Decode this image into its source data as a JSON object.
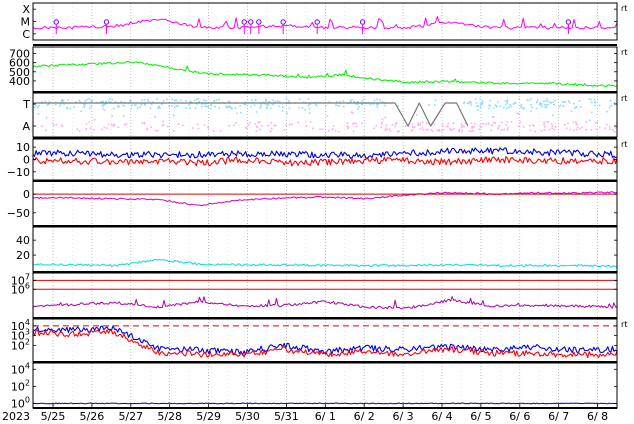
{
  "chart_data": {
    "type": "line",
    "year": "2023",
    "x_axis": {
      "ticks": [
        "5/25",
        "5/26",
        "5/27",
        "5/28",
        "5/29",
        "5/30",
        "5/31",
        "6/ 1",
        "6/ 2",
        "6/ 3",
        "6/ 4",
        "6/ 5",
        "6/ 6",
        "6/ 7",
        "6/ 8"
      ],
      "range": [
        "2023-05-24T15:00",
        "2023-06-08T15:00"
      ]
    },
    "panels": [
      {
        "id": "xray-class",
        "yticks": [
          "X",
          "M",
          "C"
        ],
        "corner_mark": "rt",
        "series": [
          {
            "color": "#ff00ff",
            "kind": "level-trace",
            "values": [
              0.3,
              0.3,
              0.35,
              0.55,
              0.3,
              0.3,
              0.35,
              0.3,
              0.3,
              0.3,
              0.45,
              0.3,
              0.3,
              0.3,
              0.3
            ]
          },
          {
            "color": "#6a00ff",
            "kind": "event-markers",
            "x": [
              "2023-05-25T02:00",
              "2023-05-26T09:00",
              "2023-05-29T22:00",
              "2023-05-30T02:00",
              "2023-05-30T07:00",
              "2023-05-30T22:00",
              "2023-05-31T19:00",
              "2023-06-01T23:00",
              "2023-06-07T06:00"
            ]
          }
        ]
      },
      {
        "id": "solar-wind-speed",
        "yticks": [
          "700",
          "600",
          "500",
          "400"
        ],
        "ylim": [
          300,
          750
        ],
        "corner_mark": "rt",
        "series": [
          {
            "color": "#00ee00",
            "x": [
              "5/24 15:00",
              "5/25 06:00",
              "5/26 03:00",
              "5/26 18:00",
              "5/27 12:00",
              "5/28 06:00",
              "5/29 00:00",
              "5/30 00:00",
              "5/31 06:00",
              "6/1 00:00",
              "6/2 00:00",
              "6/3 00:00",
              "6/4 00:00",
              "6/5 00:00",
              "6/6 00:00",
              "6/7 00:00",
              "6/8 00:00",
              "6/8 15:00"
            ],
            "values": [
              560,
              575,
              590,
              610,
              545,
              480,
              470,
              460,
              435,
              470,
              415,
              385,
              395,
              380,
              370,
              375,
              350,
              345
            ]
          }
        ]
      },
      {
        "id": "imf-direction",
        "yticks": [
          "T",
          "A"
        ],
        "corner_mark": "rt",
        "series": [
          {
            "color": "#88ddff",
            "kind": "scatter-band",
            "level": "T"
          },
          {
            "color": "#ffaaee",
            "kind": "scatter-band",
            "level": "A"
          },
          {
            "color": "#777777",
            "kind": "flag-trace",
            "x": [
              "2023-06-02T19:00",
              "2023-06-03T03:00",
              "2023-06-03T10:00",
              "2023-06-03T17:00",
              "2023-06-04T02:00",
              "2023-06-04T09:00",
              "2023-06-04T16:00"
            ],
            "levels": [
              "T",
              "A",
              "T",
              "A",
              "T",
              "T",
              "A"
            ]
          }
        ]
      },
      {
        "id": "imf-components",
        "yticks": [
          "10",
          "0",
          "−10"
        ],
        "ylim": [
          -15,
          15
        ],
        "corner_mark": "rt",
        "series": [
          {
            "color": "#0000dd",
            "values": [
              5,
              5,
              4,
              4,
              4,
              5,
              4,
              4,
              3,
              5,
              7,
              7,
              6,
              5,
              4
            ]
          },
          {
            "color": "#ff0000",
            "values": [
              -1,
              -1,
              -2,
              -1,
              -3,
              0,
              -3,
              -2,
              -1,
              -1,
              -2,
              0,
              -1,
              -1,
              -1
            ]
          }
        ]
      },
      {
        "id": "geomagnetic-h",
        "yticks": [
          "0",
          "−50"
        ],
        "ylim": [
          -80,
          30
        ],
        "series": [
          {
            "color": "#cc00cc",
            "values": [
              -10,
              -10,
              -12,
              -15,
              -30,
              -15,
              -10,
              -8,
              -12,
              -2,
              5,
              0,
              4,
              3,
              5
            ]
          },
          {
            "color": "#dd0000",
            "kind": "reference",
            "values": [
              0
            ]
          }
        ]
      },
      {
        "id": "proton-flux",
        "yticks": [
          "40",
          "20"
        ],
        "ylim": [
          0,
          55
        ],
        "series": [
          {
            "color": "#00dddd",
            "values": [
              8,
              7,
              6,
              14,
              8,
              7,
              7,
              6,
              6,
              6,
              7,
              6,
              6,
              6,
              5
            ]
          }
        ]
      },
      {
        "id": "electron-flux",
        "yticks": [
          "10^7",
          "10^6"
        ],
        "ylim": [
          3.0,
          7.6
        ],
        "series": [
          {
            "color": "#aa00aa",
            "values": [
              4.0,
              4.3,
              4.5,
              4.0,
              4.6,
              4.1,
              4.2,
              4.6,
              4.0,
              3.9,
              4.8,
              4.1,
              4.2,
              4.1,
              4.0
            ]
          },
          {
            "color": "#dd0000",
            "kind": "reference",
            "values": [
              7
            ]
          },
          {
            "color": "#dd0000",
            "kind": "reference",
            "values": [
              6
            ]
          }
        ]
      },
      {
        "id": "high-energy-flux",
        "yticks": [
          "10^4",
          "10^3",
          "10^2"
        ],
        "ylim": [
          0.5,
          4.5
        ],
        "corner_mark": "rt",
        "series": [
          {
            "color": "#0000ee",
            "values": [
              3.7,
              3.6,
              3.7,
              1.7,
              1.5,
              1.3,
              2.0,
              1.4,
              1.7,
              1.6,
              1.9,
              1.6,
              1.8,
              1.5,
              1.6
            ]
          },
          {
            "color": "#ff0000",
            "values": [
              3.3,
              3.2,
              3.3,
              1.2,
              1.1,
              1.0,
              1.6,
              1.1,
              1.3,
              1.1,
              1.6,
              1.2,
              1.2,
              1.0,
              1.1
            ]
          },
          {
            "color": "#dd0000",
            "kind": "reference-dashed",
            "values": [
              4
            ]
          }
        ]
      },
      {
        "id": "neutron-monitor",
        "yticks": [
          "10^4",
          "10^2",
          "10^0"
        ],
        "ylim": [
          -0.3,
          4.5
        ],
        "series": [
          {
            "color": "#0000cc",
            "values": [
              0,
              0,
              0,
              0,
              0,
              0,
              0,
              0,
              0,
              0,
              0,
              0,
              0,
              0,
              0
            ]
          }
        ]
      }
    ]
  }
}
